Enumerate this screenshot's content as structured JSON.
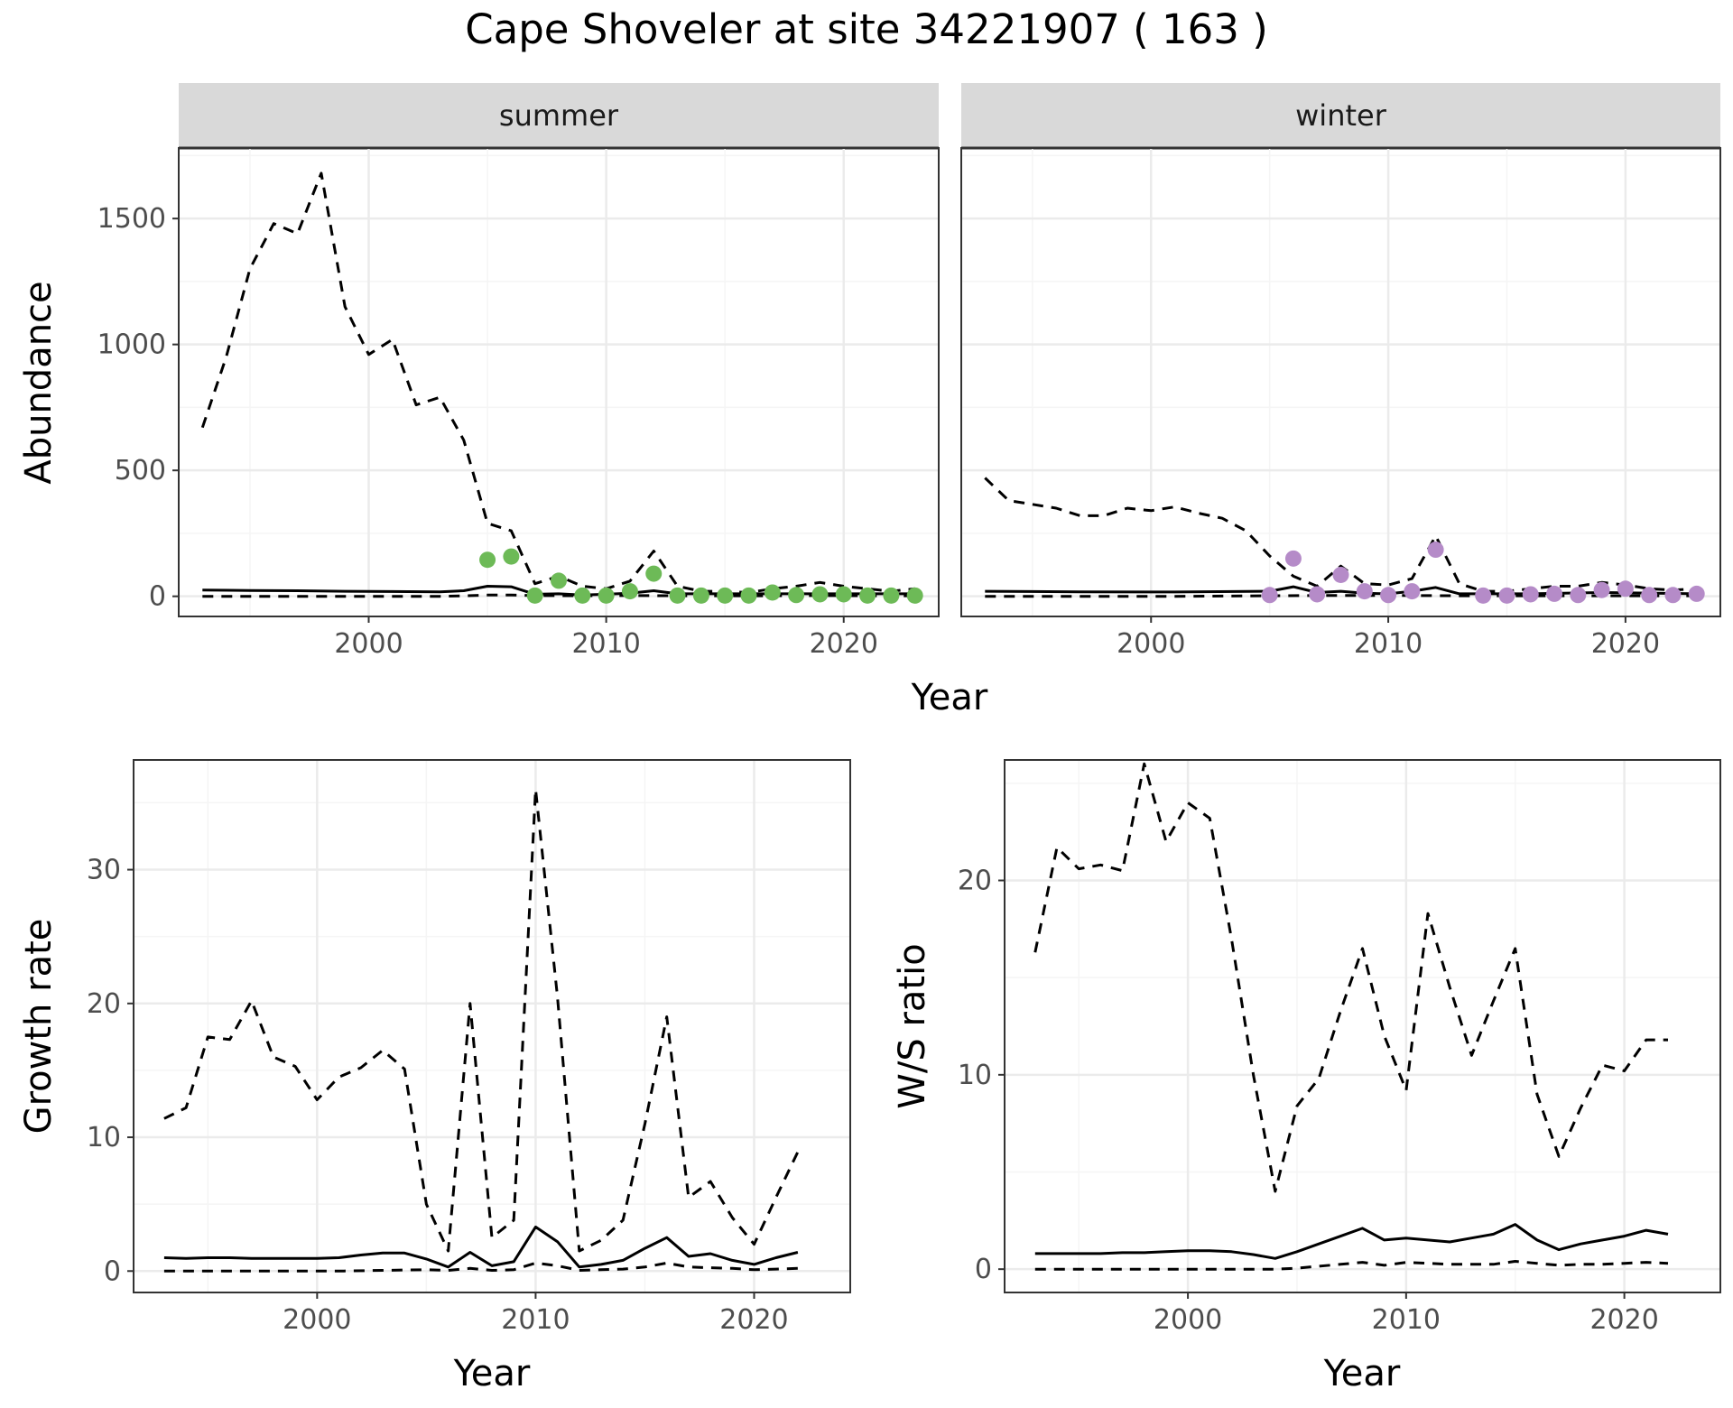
{
  "title": "Cape Shoveler at site 34221907 ( 163 )",
  "colors": {
    "summer_points": "#6dba57",
    "winter_points": "#b58bc8",
    "line": "#000000",
    "grid_major": "#ebebeb",
    "grid_minor": "#f5f5f5",
    "strip_bg": "#d9d9d9"
  },
  "chart_data": [
    {
      "type": "line",
      "facet": "summer",
      "strip_label": "summer",
      "xlabel": "",
      "ylabel": "Abundance",
      "xlim": [
        1992,
        2024
      ],
      "ylim": [
        -80,
        1780
      ],
      "x_ticks": [
        2000,
        2010,
        2020
      ],
      "y_ticks": [
        0,
        500,
        1000,
        1500
      ],
      "show_x_ticks": true,
      "show_y_ticks": true,
      "grid": true,
      "series": [
        {
          "style": "solid",
          "x": [
            1993,
            1995,
            1997,
            1999,
            2001,
            2003,
            2004,
            2005,
            2006,
            2007,
            2008,
            2009,
            2010,
            2011,
            2012,
            2013,
            2015,
            2017,
            2019,
            2021,
            2023
          ],
          "y": [
            25,
            23,
            22,
            20,
            19,
            18,
            22,
            40,
            38,
            8,
            10,
            5,
            8,
            12,
            22,
            10,
            10,
            10,
            10,
            10,
            10
          ]
        },
        {
          "style": "dashed",
          "x": [
            1993,
            1995,
            1997,
            1999,
            2001,
            2003,
            2004,
            2005,
            2006,
            2007,
            2009,
            2011,
            2013,
            2015,
            2017,
            2019,
            2021,
            2023
          ],
          "y": [
            0,
            0,
            0,
            0,
            0,
            0,
            2,
            5,
            5,
            3,
            2,
            3,
            2,
            2,
            2,
            3,
            2,
            2
          ]
        },
        {
          "style": "dashed",
          "x": [
            1993,
            1994,
            1995,
            1996,
            1997,
            1998,
            1999,
            2000,
            2001,
            2002,
            2003,
            2004,
            2005,
            2006,
            2007,
            2008,
            2009,
            2010,
            2011,
            2012,
            2013,
            2014,
            2015,
            2016,
            2017,
            2018,
            2019,
            2020,
            2021,
            2022,
            2023
          ],
          "y": [
            670,
            950,
            1300,
            1480,
            1440,
            1680,
            1150,
            960,
            1020,
            760,
            790,
            620,
            290,
            260,
            50,
            80,
            40,
            30,
            60,
            180,
            40,
            20,
            20,
            15,
            30,
            40,
            55,
            40,
            30,
            20,
            30
          ]
        }
      ],
      "points": {
        "color_key": "summer_points",
        "x": [
          2005,
          2006,
          2007,
          2008,
          2009,
          2010,
          2011,
          2012,
          2013,
          2014,
          2015,
          2016,
          2017,
          2018,
          2019,
          2020,
          2021,
          2022,
          2023
        ],
        "y": [
          145,
          158,
          3,
          62,
          3,
          3,
          20,
          90,
          3,
          3,
          3,
          3,
          15,
          5,
          8,
          8,
          3,
          3,
          3
        ]
      }
    },
    {
      "type": "line",
      "facet": "winter",
      "strip_label": "winter",
      "xlabel": "",
      "ylabel": "",
      "xlim": [
        1992,
        2024
      ],
      "ylim": [
        -80,
        1780
      ],
      "x_ticks": [
        2000,
        2010,
        2020
      ],
      "y_ticks": [
        0,
        500,
        1000,
        1500
      ],
      "show_x_ticks": true,
      "show_y_ticks": false,
      "grid": true,
      "series": [
        {
          "style": "solid",
          "x": [
            1993,
            1997,
            2001,
            2005,
            2006,
            2007,
            2008,
            2009,
            2010,
            2011,
            2012,
            2013,
            2016,
            2019,
            2023
          ],
          "y": [
            20,
            18,
            17,
            20,
            38,
            15,
            20,
            12,
            10,
            20,
            35,
            10,
            10,
            15,
            10
          ]
        },
        {
          "style": "dashed",
          "x": [
            1993,
            1997,
            2001,
            2005,
            2007,
            2009,
            2011,
            2013,
            2015,
            2017,
            2019,
            2021,
            2023
          ],
          "y": [
            0,
            0,
            0,
            2,
            3,
            3,
            3,
            2,
            2,
            2,
            2,
            2,
            2
          ]
        },
        {
          "style": "dashed",
          "x": [
            1993,
            1994,
            1995,
            1996,
            1997,
            1998,
            1999,
            2000,
            2001,
            2002,
            2003,
            2004,
            2005,
            2006,
            2007,
            2008,
            2009,
            2010,
            2011,
            2012,
            2013,
            2014,
            2015,
            2016,
            2017,
            2018,
            2019,
            2020,
            2021,
            2022,
            2023
          ],
          "y": [
            470,
            380,
            365,
            350,
            320,
            320,
            350,
            340,
            355,
            330,
            310,
            260,
            160,
            80,
            40,
            120,
            50,
            45,
            70,
            240,
            50,
            20,
            20,
            30,
            40,
            40,
            55,
            45,
            30,
            25,
            30
          ]
        }
      ],
      "points": {
        "color_key": "winter_points",
        "x": [
          2005,
          2006,
          2007,
          2008,
          2009,
          2010,
          2011,
          2012,
          2014,
          2015,
          2016,
          2017,
          2018,
          2019,
          2020,
          2021,
          2022,
          2023
        ],
        "y": [
          5,
          150,
          8,
          85,
          20,
          5,
          20,
          185,
          3,
          3,
          8,
          10,
          5,
          25,
          30,
          5,
          5,
          10
        ]
      }
    },
    {
      "type": "line",
      "xlabel": "Year",
      "ylabel": "Growth rate",
      "xlim": [
        1991.6,
        2024.4
      ],
      "ylim": [
        -1.6,
        38.2
      ],
      "x_ticks": [
        2000,
        2010,
        2020
      ],
      "y_ticks": [
        0,
        10,
        20,
        30
      ],
      "show_x_ticks": true,
      "show_y_ticks": true,
      "grid": true,
      "series": [
        {
          "style": "solid",
          "x": [
            1993,
            1994,
            1995,
            1996,
            1997,
            1998,
            1999,
            2000,
            2001,
            2002,
            2003,
            2004,
            2005,
            2006,
            2007,
            2008,
            2009,
            2010,
            2011,
            2012,
            2013,
            2014,
            2015,
            2016,
            2017,
            2018,
            2019,
            2020,
            2021,
            2022
          ],
          "y": [
            1.0,
            0.95,
            1.0,
            1.0,
            0.95,
            0.95,
            0.95,
            0.95,
            1.0,
            1.2,
            1.35,
            1.35,
            0.9,
            0.3,
            1.4,
            0.4,
            0.7,
            3.3,
            2.2,
            0.3,
            0.5,
            0.8,
            1.7,
            2.5,
            1.1,
            1.3,
            0.8,
            0.5,
            1.0,
            1.4
          ]
        },
        {
          "style": "dashed",
          "x": [
            1993,
            1995,
            1997,
            1999,
            2001,
            2003,
            2005,
            2006,
            2007,
            2008,
            2009,
            2010,
            2011,
            2012,
            2013,
            2014,
            2015,
            2016,
            2017,
            2018,
            2019,
            2020,
            2021,
            2022
          ],
          "y": [
            0.0,
            0.0,
            0.0,
            0.0,
            0.0,
            0.05,
            0.1,
            0.05,
            0.2,
            0.05,
            0.1,
            0.6,
            0.4,
            0.05,
            0.1,
            0.15,
            0.3,
            0.6,
            0.3,
            0.25,
            0.2,
            0.1,
            0.15,
            0.2
          ]
        },
        {
          "style": "dashed",
          "x": [
            1993,
            1994,
            1995,
            1996,
            1997,
            1998,
            1999,
            2000,
            2001,
            2002,
            2003,
            2004,
            2005,
            2006,
            2007,
            2008,
            2009,
            2010,
            2011,
            2012,
            2013,
            2014,
            2015,
            2016,
            2017,
            2018,
            2019,
            2020,
            2021,
            2022
          ],
          "y": [
            11.4,
            12.2,
            17.5,
            17.3,
            20.2,
            16.0,
            15.3,
            12.8,
            14.5,
            15.2,
            16.5,
            15.1,
            5.0,
            1.5,
            20.0,
            2.5,
            3.8,
            36.0,
            20.5,
            1.5,
            2.3,
            3.8,
            11.0,
            19.0,
            5.5,
            6.7,
            4.0,
            2.0,
            5.5,
            8.9
          ]
        }
      ]
    },
    {
      "type": "line",
      "xlabel": "Year",
      "ylabel": "W/S ratio",
      "xlim": [
        1991.6,
        2024.4
      ],
      "ylim": [
        -1.2,
        26.2
      ],
      "x_ticks": [
        2000,
        2010,
        2020
      ],
      "y_ticks": [
        0,
        10,
        20
      ],
      "show_x_ticks": true,
      "show_y_ticks": true,
      "grid": true,
      "series": [
        {
          "style": "solid",
          "x": [
            1993,
            1994,
            1995,
            1996,
            1997,
            1998,
            1999,
            2000,
            2001,
            2002,
            2003,
            2004,
            2005,
            2006,
            2007,
            2008,
            2009,
            2010,
            2011,
            2012,
            2013,
            2014,
            2015,
            2016,
            2017,
            2018,
            2019,
            2020,
            2021,
            2022
          ],
          "y": [
            0.8,
            0.8,
            0.8,
            0.8,
            0.85,
            0.85,
            0.9,
            0.95,
            0.95,
            0.9,
            0.75,
            0.55,
            0.9,
            1.3,
            1.7,
            2.1,
            1.5,
            1.6,
            1.5,
            1.4,
            1.6,
            1.8,
            2.3,
            1.5,
            1.0,
            1.3,
            1.5,
            1.7,
            2.0,
            1.8
          ]
        },
        {
          "style": "dashed",
          "x": [
            1993,
            1995,
            1997,
            1999,
            2001,
            2003,
            2004,
            2005,
            2006,
            2007,
            2008,
            2009,
            2010,
            2011,
            2012,
            2013,
            2014,
            2015,
            2016,
            2017,
            2018,
            2019,
            2020,
            2021,
            2022
          ],
          "y": [
            0,
            0,
            0,
            0,
            0,
            0,
            0,
            0.05,
            0.15,
            0.25,
            0.35,
            0.2,
            0.35,
            0.3,
            0.25,
            0.25,
            0.25,
            0.4,
            0.3,
            0.2,
            0.25,
            0.25,
            0.3,
            0.35,
            0.3
          ]
        },
        {
          "style": "dashed",
          "x": [
            1993,
            1994,
            1995,
            1996,
            1997,
            1998,
            1999,
            2000,
            2001,
            2002,
            2003,
            2004,
            2005,
            2006,
            2007,
            2008,
            2009,
            2010,
            2011,
            2012,
            2013,
            2014,
            2015,
            2016,
            2017,
            2018,
            2019,
            2020,
            2021,
            2022
          ],
          "y": [
            16.3,
            21.7,
            20.6,
            20.8,
            20.5,
            26.0,
            22.0,
            24.0,
            23.2,
            17.0,
            10.0,
            4.0,
            8.4,
            9.8,
            13.3,
            16.5,
            12.0,
            9.2,
            18.3,
            14.5,
            11.0,
            13.8,
            16.5,
            9.0,
            5.8,
            8.3,
            10.5,
            10.2,
            11.8,
            11.8
          ]
        }
      ]
    }
  ],
  "shared_xlabel_top": "Year"
}
